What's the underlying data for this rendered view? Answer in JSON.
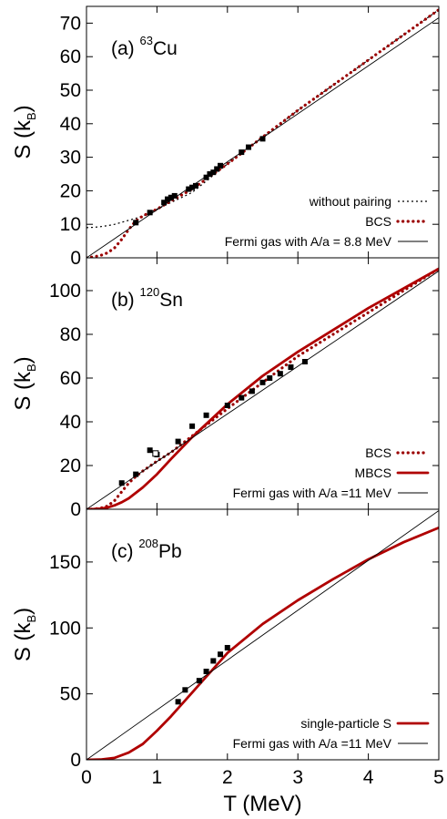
{
  "colors": {
    "bcs": "#9b0000",
    "mbcs": "#b00000",
    "fermi": "#000000",
    "no_pairing": "#000000",
    "data_points": "#000000"
  },
  "shared": {
    "xlabel": "T  (MeV)",
    "xticks": [
      "0",
      "1",
      "2",
      "3",
      "4",
      "5"
    ],
    "xlim": [
      0,
      5
    ]
  },
  "chart_data": [
    {
      "type": "line",
      "panel": "a",
      "label_prefix": "(a)",
      "mass_number": "63",
      "element": "Cu",
      "ylabel": "S (k",
      "ylabel_sub": "B",
      "ylabel_close": ")",
      "xlim": [
        0,
        5
      ],
      "ylim": [
        0,
        75
      ],
      "yticks": [
        0,
        10,
        20,
        30,
        40,
        50,
        60,
        70
      ],
      "yticklabels": [
        "0",
        "10",
        "20",
        "30",
        "40",
        "50",
        "60",
        "70"
      ],
      "legend_position": "bottom-right",
      "series": [
        {
          "name": "without pairing",
          "style": "thin-dotted",
          "color": "#000000",
          "x": [
            0,
            0.1,
            0.2,
            0.3,
            0.4,
            0.5,
            0.6,
            0.7,
            0.8,
            1.0,
            1.5,
            2.0,
            2.5,
            3.0,
            3.5,
            4.0,
            4.5,
            5.0
          ],
          "y": [
            9.0,
            9.1,
            9.3,
            9.6,
            10.0,
            10.6,
            11.2,
            11.8,
            12.5,
            14.5,
            19.5,
            28.0,
            36.0,
            44.0,
            51.5,
            59.0,
            66.5,
            74.0
          ]
        },
        {
          "name": "BCS",
          "style": "thick-dotted",
          "color": "#9b0000",
          "x": [
            0,
            0.1,
            0.2,
            0.3,
            0.4,
            0.5,
            0.6,
            0.7,
            0.8,
            1.0,
            1.2,
            1.5,
            2.0,
            2.5,
            3.0,
            3.5,
            4.0,
            4.5,
            5.0
          ],
          "y": [
            0,
            0.3,
            0.7,
            1.5,
            3.0,
            5.5,
            8.5,
            11.0,
            12.5,
            14.5,
            17.0,
            20.5,
            28.0,
            36.0,
            44.0,
            51.5,
            59.0,
            66.5,
            74.0
          ]
        },
        {
          "name": "Fermi gas with A/a = 8.8 MeV",
          "style": "thin-solid",
          "color": "#000000",
          "x": [
            0,
            5
          ],
          "y": [
            0,
            71.6
          ]
        }
      ],
      "data_points": {
        "x": [
          0.7,
          0.9,
          1.1,
          1.15,
          1.2,
          1.25,
          1.45,
          1.5,
          1.55,
          1.7,
          1.75,
          1.8,
          1.85,
          1.9,
          2.2,
          2.3,
          2.5
        ],
        "y": [
          10.5,
          13.5,
          16.5,
          17.5,
          18.0,
          18.5,
          20.5,
          21.0,
          21.5,
          24.0,
          25.0,
          25.5,
          26.5,
          27.5,
          31.5,
          33.0,
          35.5
        ]
      }
    },
    {
      "type": "line",
      "panel": "b",
      "label_prefix": "(b)",
      "mass_number": "120",
      "element": "Sn",
      "ylabel": "S (k",
      "ylabel_sub": "B",
      "ylabel_close": ")",
      "xlim": [
        0,
        5
      ],
      "ylim": [
        0,
        115
      ],
      "yticks": [
        0,
        20,
        40,
        60,
        80,
        100
      ],
      "yticklabels": [
        "0",
        "20",
        "40",
        "60",
        "80",
        "100"
      ],
      "legend_position": "bottom-right",
      "series": [
        {
          "name": "BCS",
          "style": "thick-dotted",
          "color": "#9b0000",
          "x": [
            0,
            0.1,
            0.2,
            0.3,
            0.4,
            0.5,
            0.6,
            0.7,
            0.8,
            1.0,
            1.2,
            1.5,
            2.0,
            2.5,
            3.0,
            3.5,
            4.0,
            4.5,
            5.0
          ],
          "y": [
            0,
            0.1,
            0.5,
            1.5,
            4.0,
            8.0,
            12.0,
            15.0,
            17.5,
            22.0,
            26.0,
            33.5,
            46.0,
            58.0,
            70.0,
            80.0,
            90.0,
            100.0,
            110.0
          ]
        },
        {
          "name": "MBCS",
          "style": "thick-solid",
          "color": "#b00000",
          "x": [
            0,
            0.1,
            0.2,
            0.3,
            0.4,
            0.5,
            0.6,
            0.7,
            0.8,
            1.0,
            1.2,
            1.5,
            2.0,
            2.5,
            3.0,
            3.5,
            4.0,
            4.5,
            5.0
          ],
          "y": [
            0,
            0.1,
            0.3,
            0.8,
            1.8,
            3.2,
            5.0,
            7.5,
            10.0,
            16.0,
            23.0,
            33.0,
            48.0,
            61.0,
            72.0,
            82.0,
            92.0,
            101.0,
            110.0
          ]
        },
        {
          "name": "Fermi gas with A/a =11 MeV",
          "style": "thin-solid",
          "color": "#000000",
          "x": [
            0,
            5
          ],
          "y": [
            0,
            109
          ]
        }
      ],
      "data_points": {
        "x": [
          0.5,
          0.7,
          0.9,
          1.0,
          1.3,
          1.5,
          1.7,
          2.0,
          2.2,
          2.35,
          2.5,
          2.6,
          2.75,
          2.9,
          3.1
        ],
        "y": [
          12.0,
          16.0,
          27.0,
          25.0,
          31.0,
          38.0,
          43.0,
          47.5,
          51.0,
          54.0,
          58.0,
          60.0,
          62.0,
          65.0,
          67.5
        ]
      },
      "open_points": {
        "x": [
          0.98
        ],
        "y": [
          25.5
        ]
      }
    },
    {
      "type": "line",
      "panel": "c",
      "label_prefix": "(c)",
      "mass_number": "208",
      "element": "Pb",
      "ylabel": "S (k",
      "ylabel_sub": "B",
      "ylabel_close": ")",
      "xlim": [
        0,
        5
      ],
      "ylim": [
        0,
        190
      ],
      "yticks": [
        0,
        50,
        100,
        150
      ],
      "yticklabels": [
        "0",
        "50",
        "100",
        "150"
      ],
      "legend_position": "bottom-right",
      "series": [
        {
          "name": "single-particle S",
          "style": "thick-solid",
          "color": "#b00000",
          "x": [
            0,
            0.2,
            0.4,
            0.6,
            0.8,
            1.0,
            1.2,
            1.4,
            1.6,
            1.8,
            2.0,
            2.5,
            3.0,
            3.5,
            4.0,
            4.5,
            5.0
          ],
          "y": [
            0,
            0.2,
            1.5,
            5.5,
            12.0,
            22.0,
            33.0,
            45.0,
            57.0,
            69.0,
            81.0,
            103.0,
            121.0,
            137.0,
            152.0,
            165.0,
            176.0
          ]
        },
        {
          "name": "Fermi gas with A/a =11 MeV",
          "style": "thin-solid",
          "color": "#000000",
          "x": [
            0,
            5
          ],
          "y": [
            0,
            189
          ]
        }
      ],
      "data_points": {
        "x": [
          1.3,
          1.4,
          1.6,
          1.7,
          1.8,
          1.9,
          2.0
        ],
        "y": [
          44,
          53,
          60,
          67,
          75,
          80,
          85
        ]
      }
    }
  ]
}
